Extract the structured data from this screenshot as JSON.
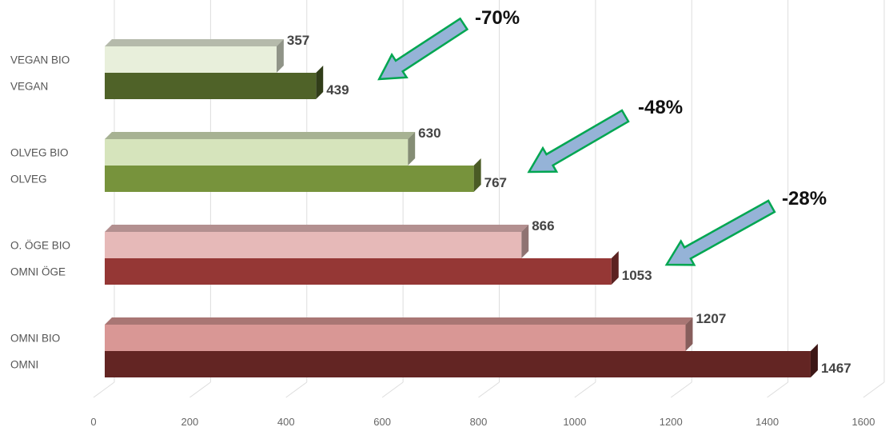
{
  "chart_data": {
    "type": "bar",
    "orientation": "horizontal",
    "style": "3d",
    "grid": true,
    "xlim": [
      0,
      1600
    ],
    "xticks": [
      "0",
      "200",
      "400",
      "600",
      "800",
      "1000",
      "1200",
      "1400",
      "1600"
    ],
    "xtick_values": [
      0,
      200,
      400,
      600,
      800,
      1000,
      1200,
      1400,
      1600
    ],
    "bars": [
      {
        "label": "VEGAN BIO",
        "value": 357,
        "value_label": "357",
        "color": "#e8efdb",
        "group": 0
      },
      {
        "label": "VEGAN",
        "value": 439,
        "value_label": "439",
        "color": "#4f6228",
        "group": 0
      },
      {
        "label": "OLVEG BIO",
        "value": 630,
        "value_label": "630",
        "color": "#d6e4bc",
        "group": 1
      },
      {
        "label": "OLVEG",
        "value": 767,
        "value_label": "767",
        "color": "#77933c",
        "group": 1
      },
      {
        "label": "O. ÖGE BIO",
        "value": 866,
        "value_label": "866",
        "color": "#e6b9b8",
        "group": 2
      },
      {
        "label": "OMNI ÖGE",
        "value": 1053,
        "value_label": "1053",
        "color": "#953735",
        "group": 2
      },
      {
        "label": "OMNI BIO",
        "value": 1207,
        "value_label": "1207",
        "color": "#d99795",
        "group": 3
      },
      {
        "label": "OMNI",
        "value": 1467,
        "value_label": "1467",
        "color": "#632523",
        "group": 3
      }
    ],
    "annotations": [
      {
        "text": "-70%",
        "group": 0
      },
      {
        "text": "-48%",
        "group": 1
      },
      {
        "text": "-28%",
        "group": 2
      }
    ],
    "annotation_arrow_fill": "#95b3d7",
    "annotation_arrow_stroke": "#00a651"
  }
}
